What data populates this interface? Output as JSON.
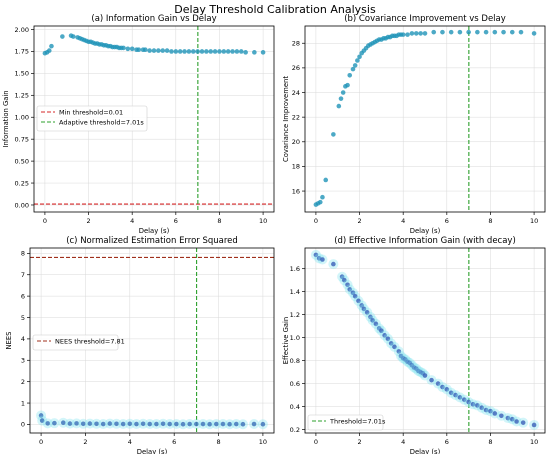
{
  "suptitle": "Delay Threshold Calibration Analysis",
  "chart_data": [
    {
      "type": "scatter",
      "title": "(a) Information Gain vs Delay",
      "xlabel": "Delay (s)",
      "ylabel": "Information Gain",
      "xlim": [
        -0.5,
        10.5
      ],
      "ylim": [
        -0.08,
        2.04
      ],
      "xticks": [
        "0",
        "2",
        "4",
        "6",
        "8",
        "10"
      ],
      "yticks": [
        "0.00",
        "0.25",
        "0.50",
        "0.75",
        "1.00",
        "1.25",
        "1.50",
        "1.75",
        "2.00"
      ],
      "grid": true,
      "legend_position": "center-left",
      "point_color": "#1f93b8",
      "x": [
        0,
        0.1,
        0.2,
        0.3,
        0.8,
        1.2,
        1.3,
        1.5,
        1.6,
        1.7,
        1.8,
        1.9,
        2.0,
        2.1,
        2.2,
        2.3,
        2.4,
        2.5,
        2.6,
        2.7,
        2.8,
        2.9,
        3.0,
        3.1,
        3.2,
        3.3,
        3.4,
        3.5,
        3.6,
        3.8,
        4.0,
        4.2,
        4.3,
        4.5,
        4.6,
        4.8,
        5.0,
        5.2,
        5.4,
        5.6,
        5.8,
        6.0,
        6.2,
        6.4,
        6.6,
        6.8,
        7.0,
        7.2,
        7.4,
        7.6,
        7.8,
        8.0,
        8.2,
        8.4,
        8.6,
        8.8,
        9.0,
        9.2,
        9.6,
        10.0
      ],
      "y": [
        1.73,
        1.74,
        1.76,
        1.81,
        1.92,
        1.93,
        1.92,
        1.91,
        1.9,
        1.89,
        1.88,
        1.87,
        1.86,
        1.86,
        1.85,
        1.84,
        1.84,
        1.83,
        1.83,
        1.82,
        1.82,
        1.81,
        1.81,
        1.8,
        1.8,
        1.8,
        1.79,
        1.79,
        1.79,
        1.78,
        1.78,
        1.77,
        1.77,
        1.77,
        1.77,
        1.76,
        1.76,
        1.76,
        1.76,
        1.76,
        1.75,
        1.75,
        1.75,
        1.75,
        1.75,
        1.75,
        1.75,
        1.75,
        1.75,
        1.75,
        1.75,
        1.75,
        1.75,
        1.75,
        1.75,
        1.75,
        1.75,
        1.74,
        1.74,
        1.74
      ],
      "hlines": [
        {
          "y": 0.01,
          "color": "#d62728",
          "style": "dashed"
        }
      ],
      "vlines": [
        {
          "x": 7.01,
          "color": "#2ca02c",
          "style": "dashed"
        }
      ],
      "legend": [
        {
          "label": "Min threshold=0.01",
          "color": "#d62728"
        },
        {
          "label": "Adaptive threshold=7.01s",
          "color": "#2ca02c"
        }
      ]
    },
    {
      "type": "scatter",
      "title": "(b) Covariance Improvement vs Delay",
      "xlabel": "Delay (s)",
      "ylabel": "Covariance Improvement",
      "xlim": [
        -0.5,
        10.5
      ],
      "ylim": [
        14.3,
        29.4
      ],
      "xticks": [
        "0",
        "2",
        "4",
        "6",
        "8",
        "10"
      ],
      "yticks": [
        "16",
        "18",
        "20",
        "22",
        "24",
        "26",
        "28"
      ],
      "grid": true,
      "point_color": "#1f93b8",
      "x": [
        0,
        0.1,
        0.2,
        0.3,
        0.45,
        0.8,
        1.05,
        1.15,
        1.25,
        1.35,
        1.45,
        1.55,
        1.7,
        1.8,
        1.9,
        2.0,
        2.1,
        2.2,
        2.3,
        2.4,
        2.5,
        2.6,
        2.7,
        2.8,
        2.9,
        3.0,
        3.1,
        3.2,
        3.3,
        3.4,
        3.5,
        3.6,
        3.7,
        3.8,
        3.9,
        4.0,
        4.2,
        4.4,
        4.6,
        4.8,
        5.0,
        5.4,
        5.8,
        6.2,
        6.6,
        7.0,
        7.4,
        7.8,
        8.2,
        8.6,
        9.0,
        9.4,
        10.0
      ],
      "y": [
        14.9,
        15.0,
        15.1,
        15.5,
        16.9,
        20.6,
        22.9,
        23.5,
        24.0,
        24.5,
        24.6,
        25.4,
        25.9,
        26.2,
        26.6,
        26.9,
        27.2,
        27.4,
        27.6,
        27.8,
        27.9,
        28.0,
        28.1,
        28.2,
        28.3,
        28.3,
        28.4,
        28.4,
        28.5,
        28.5,
        28.6,
        28.6,
        28.6,
        28.7,
        28.7,
        28.7,
        28.7,
        28.8,
        28.8,
        28.8,
        28.8,
        28.9,
        28.9,
        28.9,
        28.9,
        28.9,
        28.9,
        28.9,
        28.9,
        28.9,
        28.9,
        28.9,
        28.8
      ],
      "vlines": [
        {
          "x": 7.01,
          "color": "#2ca02c",
          "style": "dashed"
        }
      ]
    },
    {
      "type": "scatter",
      "title": "(c) Normalized Estimation Error Squared",
      "xlabel": "Delay (s)",
      "ylabel": "NEES",
      "xlim": [
        -0.5,
        10.5
      ],
      "ylim": [
        -0.4,
        8.25
      ],
      "xticks": [
        "0",
        "2",
        "4",
        "6",
        "8",
        "10"
      ],
      "yticks": [
        "0",
        "1",
        "2",
        "3",
        "4",
        "5",
        "6",
        "7",
        "8"
      ],
      "grid": true,
      "legend_position": "center-left",
      "point_color": "#3a6fb8",
      "x": [
        0,
        0.05,
        0.3,
        0.6,
        1.0,
        1.3,
        1.6,
        1.9,
        2.2,
        2.5,
        2.8,
        3.1,
        3.4,
        3.7,
        4.0,
        4.3,
        4.6,
        4.9,
        5.2,
        5.5,
        5.8,
        6.1,
        6.4,
        6.7,
        7.0,
        7.3,
        7.6,
        7.9,
        8.2,
        8.5,
        8.8,
        9.1,
        9.6,
        10.0
      ],
      "y": [
        0.42,
        0.18,
        0.05,
        0.06,
        0.08,
        0.04,
        0.05,
        0.03,
        0.04,
        0.03,
        0.02,
        0.04,
        0.03,
        0.02,
        0.03,
        0.02,
        0.03,
        0.02,
        0.02,
        0.03,
        0.02,
        0.02,
        0.01,
        0.02,
        0.02,
        0.02,
        0.01,
        0.02,
        0.02,
        0.01,
        0.02,
        0.01,
        0.02,
        0.01
      ],
      "hlines": [
        {
          "y": 7.81,
          "color": "#a0301c",
          "style": "dashed"
        }
      ],
      "vlines": [
        {
          "x": 7.01,
          "color": "#2ca02c",
          "style": "dashed"
        }
      ],
      "legend": [
        {
          "label": "NEES threshold=7.81",
          "color": "#a0301c"
        }
      ]
    },
    {
      "type": "scatter",
      "title": "(d) Effective Information Gain (with decay)",
      "xlabel": "Delay (s)",
      "ylabel": "Effective Gain",
      "xlim": [
        -0.5,
        10.5
      ],
      "ylim": [
        0.17,
        1.78
      ],
      "xticks": [
        "0",
        "2",
        "4",
        "6",
        "8",
        "10"
      ],
      "yticks": [
        "0.2",
        "0.4",
        "0.6",
        "0.8",
        "1.0",
        "1.2",
        "1.4",
        "1.6"
      ],
      "grid": true,
      "legend_position": "bottom-left",
      "point_color": "#3a5fb8",
      "x": [
        0,
        0.15,
        0.3,
        0.8,
        1.2,
        1.3,
        1.45,
        1.55,
        1.7,
        1.8,
        1.95,
        2.1,
        2.2,
        2.35,
        2.5,
        2.6,
        2.75,
        2.9,
        3.0,
        3.15,
        3.3,
        3.45,
        3.6,
        3.8,
        3.9,
        4.0,
        4.1,
        4.2,
        4.3,
        4.4,
        4.5,
        4.6,
        4.7,
        4.8,
        4.9,
        5.0,
        5.3,
        5.6,
        5.8,
        6.0,
        6.2,
        6.4,
        6.6,
        6.8,
        7.0,
        7.2,
        7.4,
        7.6,
        7.8,
        8.0,
        8.2,
        8.5,
        8.8,
        9.0,
        9.2,
        9.5,
        10.0
      ],
      "y": [
        1.72,
        1.69,
        1.68,
        1.64,
        1.53,
        1.5,
        1.46,
        1.42,
        1.39,
        1.36,
        1.32,
        1.28,
        1.25,
        1.22,
        1.18,
        1.15,
        1.12,
        1.08,
        1.06,
        1.02,
        0.99,
        0.95,
        0.92,
        0.88,
        0.84,
        0.82,
        0.81,
        0.79,
        0.78,
        0.76,
        0.74,
        0.73,
        0.71,
        0.7,
        0.69,
        0.67,
        0.63,
        0.6,
        0.57,
        0.55,
        0.52,
        0.5,
        0.48,
        0.46,
        0.44,
        0.42,
        0.41,
        0.39,
        0.37,
        0.36,
        0.34,
        0.32,
        0.3,
        0.29,
        0.27,
        0.26,
        0.24
      ],
      "vlines": [
        {
          "x": 7.01,
          "color": "#2ca02c",
          "style": "dashed"
        }
      ],
      "legend": [
        {
          "label": "Threshold=7.01s",
          "color": "#2ca02c"
        }
      ]
    }
  ]
}
